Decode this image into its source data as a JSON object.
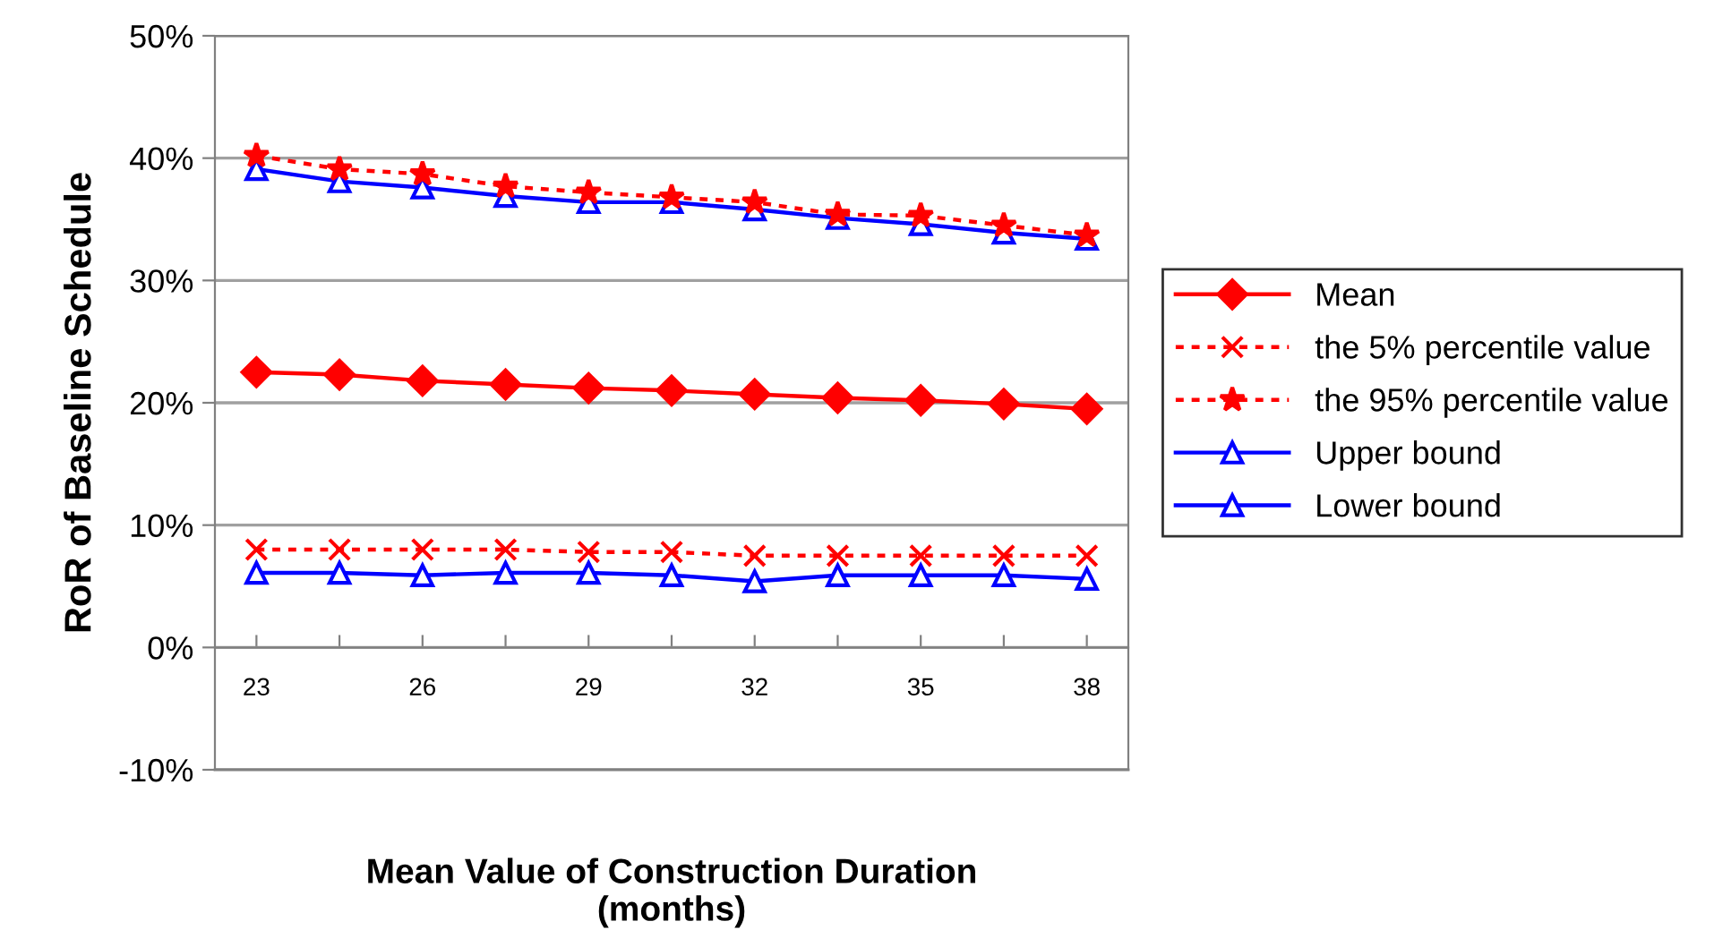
{
  "chart_data": {
    "type": "line",
    "xlabel": "Mean Value of Construction Duration\n(months)",
    "ylabel": "RoR of Baseline Schedule",
    "categories": [
      "23",
      null,
      "26",
      null,
      "29",
      null,
      "32",
      null,
      "35",
      null,
      "38"
    ],
    "series": [
      {
        "name": "Mean",
        "color": "#ff0000",
        "marker": "diamond",
        "line_style": "solid",
        "values": [
          22.5,
          22.3,
          21.8,
          21.5,
          21.2,
          21.0,
          20.7,
          20.4,
          20.2,
          19.9,
          19.5
        ]
      },
      {
        "name": "the 5% percentile value",
        "color": "#ff0000",
        "marker": "cross",
        "line_style": "dotted",
        "values": [
          8.0,
          8.0,
          8.0,
          8.0,
          7.8,
          7.8,
          7.5,
          7.5,
          7.5,
          7.5,
          7.5
        ]
      },
      {
        "name": "the 95% percentile value",
        "color": "#ff0000",
        "marker": "star",
        "line_style": "dotted",
        "values": [
          40.2,
          39.1,
          38.7,
          37.7,
          37.2,
          36.8,
          36.4,
          35.4,
          35.3,
          34.5,
          33.7
        ]
      },
      {
        "name": "Upper bound",
        "color": "#0000ff",
        "marker": "triangle",
        "line_style": "solid",
        "values": [
          39.1,
          38.1,
          37.6,
          36.9,
          36.4,
          36.4,
          35.8,
          35.1,
          34.6,
          33.9,
          33.4
        ]
      },
      {
        "name": "Lower bound",
        "color": "#0000ff",
        "marker": "triangle",
        "line_style": "solid",
        "values": [
          6.1,
          6.1,
          5.9,
          6.1,
          6.1,
          5.9,
          5.4,
          5.9,
          5.9,
          5.9,
          5.6
        ]
      }
    ],
    "ylim": [
      -10,
      50
    ],
    "yticks": [
      {
        "value": -10,
        "label": "-10%"
      },
      {
        "value": 0,
        "label": "0%"
      },
      {
        "value": 10,
        "label": "10%"
      },
      {
        "value": 20,
        "label": "20%"
      },
      {
        "value": 30,
        "label": "30%"
      },
      {
        "value": 40,
        "label": "40%"
      },
      {
        "value": 50,
        "label": "50%"
      }
    ],
    "grid": "y",
    "legend": "right"
  }
}
